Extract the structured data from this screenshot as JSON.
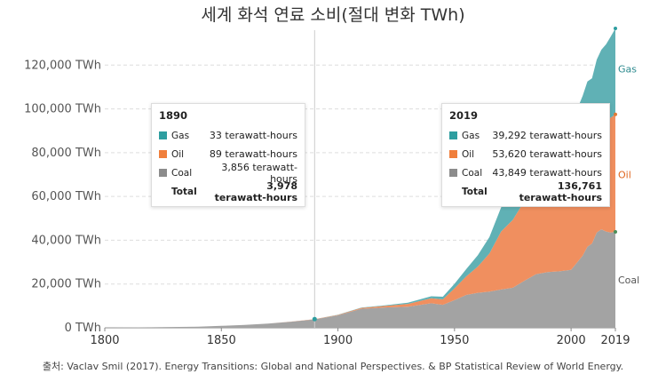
{
  "title": "세계 화석 연료 소비(절대 변화 TWh)",
  "source": "출처: Vaclav Smil (2017). Energy Transitions: Global and National Perspectives. & BP Statistical Review of World Energy.",
  "colors": {
    "gas": "#60b1b5",
    "oil": "#f08f5f",
    "coal": "#a3a3a3",
    "grid": "#dddddd"
  },
  "chart_data": {
    "type": "area",
    "stacked": true,
    "title": "세계 화석 연료 소비(절대 변화 TWh)",
    "xlim": [
      1800,
      2019
    ],
    "ylim": [
      0,
      140000
    ],
    "x_ticks": [
      "1800",
      "1850",
      "1900",
      "1950",
      "2000",
      "2019"
    ],
    "x_tick_values": [
      1800,
      1850,
      1900,
      1950,
      2000,
      2019
    ],
    "y_ticks": [
      "0 TWh",
      "20,000 TWh",
      "40,000 TWh",
      "60,000 TWh",
      "80,000 TWh",
      "100,000 TWh",
      "120,000 TWh"
    ],
    "y_tick_values": [
      0,
      20000,
      40000,
      60000,
      80000,
      100000,
      120000
    ],
    "grid": true,
    "x": [
      1800,
      1820,
      1840,
      1850,
      1860,
      1870,
      1880,
      1890,
      1900,
      1910,
      1920,
      1930,
      1940,
      1945,
      1950,
      1955,
      1960,
      1965,
      1970,
      1975,
      1980,
      1985,
      1990,
      1995,
      2000,
      2005,
      2007,
      2009,
      2011,
      2013,
      2015,
      2017,
      2019
    ],
    "series": [
      {
        "name": "Coal",
        "color": "#a3a3a3",
        "values": [
          100,
          250,
          500,
          900,
          1300,
          1900,
          2800,
          3856,
          5700,
          8700,
          9300,
          9600,
          11200,
          10500,
          12600,
          15000,
          16000,
          16500,
          17500,
          18300,
          21500,
          24500,
          25500,
          25800,
          26500,
          33000,
          37000,
          38500,
          43500,
          45000,
          44000,
          43500,
          43849
        ]
      },
      {
        "name": "Oil",
        "color": "#f08f5f",
        "values": [
          0,
          0,
          0,
          0,
          0,
          10,
          50,
          89,
          200,
          400,
          700,
          1300,
          2300,
          2500,
          5400,
          8500,
          12000,
          17500,
          26500,
          31000,
          36500,
          32500,
          36000,
          38500,
          42500,
          45500,
          46500,
          46000,
          47000,
          48500,
          50500,
          52500,
          53620
        ]
      },
      {
        "name": "Gas",
        "color": "#60b1b5",
        "values": [
          0,
          0,
          0,
          0,
          0,
          0,
          10,
          33,
          60,
          150,
          250,
          600,
          900,
          1200,
          2100,
          3300,
          5200,
          7500,
          11000,
          12500,
          15000,
          16500,
          20000,
          21500,
          24000,
          27500,
          29000,
          29500,
          32000,
          33500,
          35000,
          37000,
          39292
        ]
      }
    ],
    "series_labels": [
      "Gas",
      "Oil",
      "Coal"
    ],
    "legend_placement": "right (end labels)",
    "tooltips": [
      {
        "year": "1890",
        "rows": [
          {
            "name": "Gas",
            "value": "33 terawatt-hours"
          },
          {
            "name": "Oil",
            "value": "89 terawatt-hours"
          },
          {
            "name": "Coal",
            "value": "3,856 terawatt-hours"
          }
        ],
        "total_label": "Total",
        "total_value": "3,978 terawatt-hours"
      },
      {
        "year": "2019",
        "rows": [
          {
            "name": "Gas",
            "value": "39,292 terawatt-hours"
          },
          {
            "name": "Oil",
            "value": "53,620 terawatt-hours"
          },
          {
            "name": "Coal",
            "value": "43,849 terawatt-hours"
          }
        ],
        "total_label": "Total",
        "total_value": "136,761 terawatt-hours"
      }
    ]
  }
}
